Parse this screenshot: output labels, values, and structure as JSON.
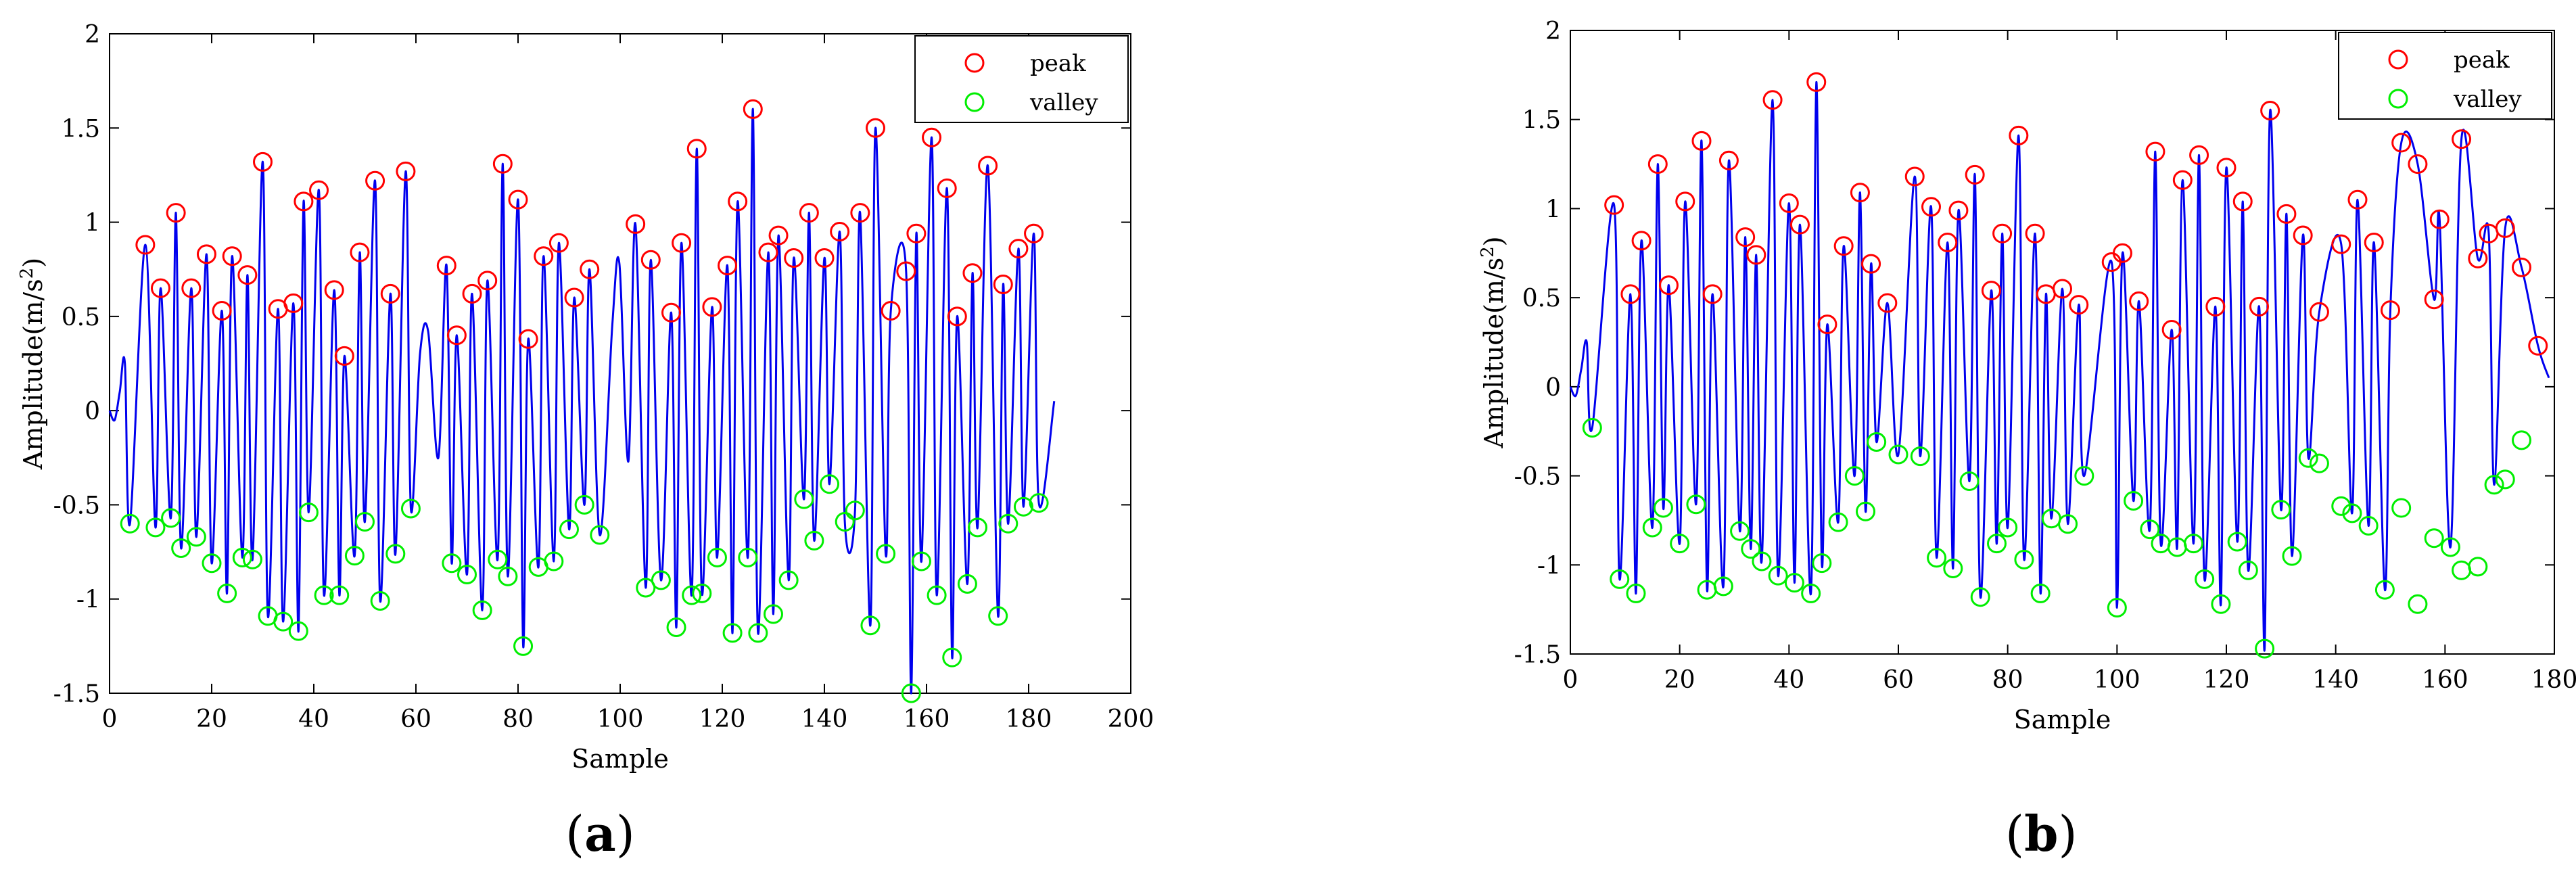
{
  "chart_data": [
    {
      "type": "line",
      "panel": "(a)",
      "title": "",
      "xlabel": "Sample",
      "ylabel": "Amplitude(m/s²)",
      "ylabel_base": "Amplitude(m/s",
      "ylabel_sup": "2",
      "ylabel_close": ")",
      "xlim": [
        0,
        200
      ],
      "ylim": [
        -1.5,
        2
      ],
      "xticks": [
        0,
        20,
        40,
        60,
        80,
        100,
        120,
        140,
        160,
        180,
        200
      ],
      "xtick_labels": [
        "0",
        "20",
        "40",
        "60",
        "80",
        "100",
        "120",
        "140",
        "160",
        "180",
        "200"
      ],
      "yticks": [
        -1.5,
        -1,
        -0.5,
        0,
        0.5,
        1,
        1.5,
        2
      ],
      "ytick_labels": [
        "-1.5",
        "-1",
        "-0.5",
        "0",
        "0.5",
        "1",
        "1.5",
        "2"
      ],
      "legend": [
        {
          "label": "peak",
          "color": "#ff0000"
        },
        {
          "label": "valley",
          "color": "#00ee00"
        }
      ],
      "legend_position": "top-right",
      "colors": {
        "signal": "#0000ee",
        "peak": "#ff0000",
        "valley": "#00ee00"
      },
      "signal_x_end": 185,
      "peaks": [
        [
          7,
          0.88
        ],
        [
          10,
          0.65
        ],
        [
          13,
          1.05
        ],
        [
          16,
          0.65
        ],
        [
          19,
          0.83
        ],
        [
          22,
          0.53
        ],
        [
          24,
          0.82
        ],
        [
          27,
          0.72
        ],
        [
          30,
          1.32
        ],
        [
          33,
          0.54
        ],
        [
          36,
          0.57
        ],
        [
          38,
          1.11
        ],
        [
          41,
          1.17
        ],
        [
          44,
          0.64
        ],
        [
          46,
          0.29
        ],
        [
          49,
          0.84
        ],
        [
          52,
          1.22
        ],
        [
          55,
          0.62
        ],
        [
          58,
          1.27
        ],
        [
          66,
          0.77
        ],
        [
          68,
          0.4
        ],
        [
          71,
          0.62
        ],
        [
          74,
          0.69
        ],
        [
          77,
          1.31
        ],
        [
          80,
          1.12
        ],
        [
          82,
          0.38
        ],
        [
          85,
          0.82
        ],
        [
          88,
          0.89
        ],
        [
          91,
          0.6
        ],
        [
          94,
          0.75
        ],
        [
          103,
          0.99
        ],
        [
          106,
          0.8
        ],
        [
          110,
          0.52
        ],
        [
          112,
          0.89
        ],
        [
          115,
          1.39
        ],
        [
          118,
          0.55
        ],
        [
          121,
          0.77
        ],
        [
          123,
          1.11
        ],
        [
          126,
          1.6
        ],
        [
          129,
          0.84
        ],
        [
          131,
          0.93
        ],
        [
          134,
          0.81
        ],
        [
          137,
          1.05
        ],
        [
          140,
          0.81
        ],
        [
          143,
          0.95
        ],
        [
          147,
          1.05
        ],
        [
          150,
          1.5
        ],
        [
          153,
          0.53
        ],
        [
          156,
          0.74
        ],
        [
          158,
          0.94
        ],
        [
          161,
          1.45
        ],
        [
          164,
          1.18
        ],
        [
          166,
          0.5
        ],
        [
          169,
          0.73
        ],
        [
          172,
          1.3
        ],
        [
          175,
          0.67
        ],
        [
          178,
          0.86
        ],
        [
          181,
          0.94
        ]
      ],
      "valleys": [
        [
          4,
          -0.6
        ],
        [
          9,
          -0.62
        ],
        [
          12,
          -0.57
        ],
        [
          14,
          -0.73
        ],
        [
          17,
          -0.67
        ],
        [
          20,
          -0.81
        ],
        [
          23,
          -0.97
        ],
        [
          26,
          -0.78
        ],
        [
          28,
          -0.79
        ],
        [
          31,
          -1.09
        ],
        [
          34,
          -1.12
        ],
        [
          37,
          -1.17
        ],
        [
          39,
          -0.54
        ],
        [
          42,
          -0.98
        ],
        [
          45,
          -0.98
        ],
        [
          48,
          -0.77
        ],
        [
          50,
          -0.59
        ],
        [
          53,
          -1.01
        ],
        [
          56,
          -0.76
        ],
        [
          59,
          -0.52
        ],
        [
          67,
          -0.81
        ],
        [
          70,
          -0.87
        ],
        [
          73,
          -1.06
        ],
        [
          76,
          -0.79
        ],
        [
          78,
          -0.88
        ],
        [
          81,
          -1.25
        ],
        [
          84,
          -0.83
        ],
        [
          87,
          -0.8
        ],
        [
          90,
          -0.63
        ],
        [
          93,
          -0.5
        ],
        [
          96,
          -0.66
        ],
        [
          105,
          -0.94
        ],
        [
          108,
          -0.9
        ],
        [
          111,
          -1.15
        ],
        [
          114,
          -0.98
        ],
        [
          116,
          -0.97
        ],
        [
          119,
          -0.78
        ],
        [
          122,
          -1.18
        ],
        [
          125,
          -0.78
        ],
        [
          127,
          -1.18
        ],
        [
          130,
          -1.08
        ],
        [
          133,
          -0.9
        ],
        [
          136,
          -0.47
        ],
        [
          138,
          -0.69
        ],
        [
          141,
          -0.39
        ],
        [
          144,
          -0.59
        ],
        [
          146,
          -0.53
        ],
        [
          149,
          -1.14
        ],
        [
          152,
          -0.76
        ],
        [
          157,
          -1.5
        ],
        [
          159,
          -0.8
        ],
        [
          162,
          -0.98
        ],
        [
          165,
          -1.31
        ],
        [
          168,
          -0.92
        ],
        [
          170,
          -0.62
        ],
        [
          174,
          -1.09
        ],
        [
          176,
          -0.6
        ],
        [
          179,
          -0.51
        ],
        [
          182,
          -0.49
        ]
      ],
      "gaps": [
        [
          58,
          66,
          0.3,
          0.42,
          -0.25
        ],
        [
          96,
          103,
          0.45,
          0.78,
          -0.27
        ]
      ]
    },
    {
      "type": "line",
      "panel": "(b)",
      "title": "",
      "xlabel": "Sample",
      "ylabel": "Amplitude(m/s²)",
      "ylabel_base": "Amplitude(m/s",
      "ylabel_sup": "2",
      "ylabel_close": ")",
      "xlim": [
        0,
        180
      ],
      "ylim": [
        -1.5,
        2
      ],
      "xticks": [
        0,
        20,
        40,
        60,
        80,
        100,
        120,
        140,
        160,
        180
      ],
      "xtick_labels": [
        "0",
        "20",
        "40",
        "60",
        "80",
        "100",
        "120",
        "140",
        "160",
        "180"
      ],
      "yticks": [
        -1.5,
        -1,
        -0.5,
        0,
        0.5,
        1,
        1.5,
        2
      ],
      "ytick_labels": [
        "-1.5",
        "-1",
        "-0.5",
        "0",
        "0.5",
        "1",
        "1.5",
        "2"
      ],
      "legend": [
        {
          "label": "peak",
          "color": "#ff0000"
        },
        {
          "label": "valley",
          "color": "#00ee00"
        }
      ],
      "legend_position": "top-right",
      "colors": {
        "signal": "#0000ee",
        "peak": "#ff0000",
        "valley": "#00ee00"
      },
      "signal_x_end": 179,
      "peaks": [
        [
          8,
          1.02
        ],
        [
          11,
          0.52
        ],
        [
          13,
          0.82
        ],
        [
          16,
          1.25
        ],
        [
          18,
          0.57
        ],
        [
          21,
          1.04
        ],
        [
          24,
          1.38
        ],
        [
          26,
          0.52
        ],
        [
          29,
          1.27
        ],
        [
          32,
          0.84
        ],
        [
          34,
          0.74
        ],
        [
          37,
          1.61
        ],
        [
          40,
          1.03
        ],
        [
          42,
          0.91
        ],
        [
          45,
          1.71
        ],
        [
          47,
          0.35
        ],
        [
          50,
          0.79
        ],
        [
          53,
          1.09
        ],
        [
          55,
          0.69
        ],
        [
          58,
          0.47
        ],
        [
          63,
          1.18
        ],
        [
          66,
          1.01
        ],
        [
          69,
          0.81
        ],
        [
          71,
          0.99
        ],
        [
          74,
          1.19
        ],
        [
          77,
          0.54
        ],
        [
          79,
          0.86
        ],
        [
          82,
          1.41
        ],
        [
          85,
          0.86
        ],
        [
          87,
          0.52
        ],
        [
          90,
          0.55
        ],
        [
          93,
          0.46
        ],
        [
          99,
          0.7
        ],
        [
          101,
          0.75
        ],
        [
          104,
          0.48
        ],
        [
          107,
          1.32
        ],
        [
          110,
          0.32
        ],
        [
          112,
          1.16
        ],
        [
          115,
          1.3
        ],
        [
          118,
          0.45
        ],
        [
          120,
          1.23
        ],
        [
          123,
          1.04
        ],
        [
          126,
          0.45
        ],
        [
          128,
          1.55
        ],
        [
          131,
          0.97
        ],
        [
          134,
          0.85
        ],
        [
          137,
          0.42
        ],
        [
          141,
          0.8
        ],
        [
          144,
          1.05
        ],
        [
          147,
          0.81
        ],
        [
          150,
          0.43
        ],
        [
          152,
          1.37
        ],
        [
          155,
          1.25
        ],
        [
          158,
          0.49
        ],
        [
          159,
          0.94
        ],
        [
          163,
          1.39
        ],
        [
          166,
          0.72
        ],
        [
          168,
          0.86
        ],
        [
          171,
          0.89
        ],
        [
          174,
          0.67
        ],
        [
          177,
          0.23
        ]
      ],
      "valleys": [
        [
          4,
          -0.23
        ],
        [
          9,
          -1.08
        ],
        [
          12,
          -1.16
        ],
        [
          15,
          -0.79
        ],
        [
          17,
          -0.68
        ],
        [
          20,
          -0.88
        ],
        [
          23,
          -0.66
        ],
        [
          25,
          -1.14
        ],
        [
          28,
          -1.12
        ],
        [
          31,
          -0.81
        ],
        [
          33,
          -0.91
        ],
        [
          35,
          -0.98
        ],
        [
          38,
          -1.06
        ],
        [
          41,
          -1.1
        ],
        [
          44,
          -1.16
        ],
        [
          46,
          -0.99
        ],
        [
          49,
          -0.76
        ],
        [
          52,
          -0.5
        ],
        [
          54,
          -0.7
        ],
        [
          56,
          -0.31
        ],
        [
          60,
          -0.38
        ],
        [
          64,
          -0.39
        ],
        [
          67,
          -0.96
        ],
        [
          70,
          -1.02
        ],
        [
          73,
          -0.53
        ],
        [
          75,
          -1.18
        ],
        [
          78,
          -0.88
        ],
        [
          80,
          -0.79
        ],
        [
          83,
          -0.97
        ],
        [
          86,
          -1.16
        ],
        [
          88,
          -0.74
        ],
        [
          91,
          -0.77
        ],
        [
          94,
          -0.5
        ],
        [
          100,
          -1.24
        ],
        [
          103,
          -0.64
        ],
        [
          106,
          -0.8
        ],
        [
          108,
          -0.88
        ],
        [
          111,
          -0.9
        ],
        [
          114,
          -0.88
        ],
        [
          116,
          -1.08
        ],
        [
          119,
          -1.22
        ],
        [
          122,
          -0.87
        ],
        [
          124,
          -1.03
        ],
        [
          127,
          -1.47
        ],
        [
          130,
          -0.69
        ],
        [
          132,
          -0.95
        ],
        [
          135,
          -0.4
        ],
        [
          137,
          -0.43
        ],
        [
          141,
          -0.67
        ],
        [
          143,
          -0.71
        ],
        [
          146,
          -0.78
        ],
        [
          149,
          -1.14
        ],
        [
          152,
          -0.68
        ],
        [
          155,
          -1.22
        ],
        [
          158,
          -0.85
        ],
        [
          161,
          -0.9
        ],
        [
          163,
          -1.03
        ],
        [
          166,
          -1.01
        ],
        [
          169,
          -0.55
        ],
        [
          171,
          -0.52
        ],
        [
          174,
          -0.3
        ]
      ],
      "gaps": []
    }
  ],
  "captions": {
    "a": {
      "open": "(",
      "letter": "a",
      "close": ")"
    },
    "b": {
      "open": "(",
      "letter": "b",
      "close": ")"
    }
  }
}
